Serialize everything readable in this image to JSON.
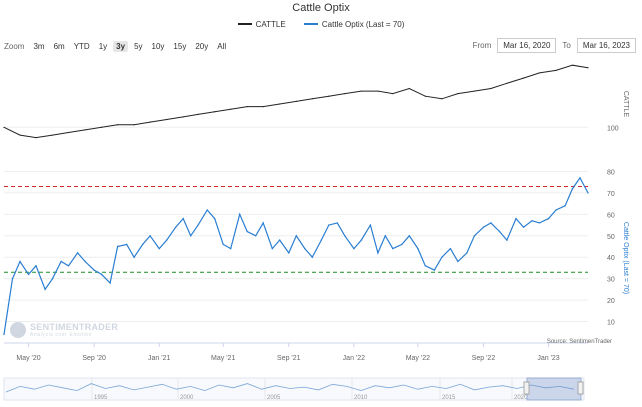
{
  "chart": {
    "title": "Cattle Optix",
    "legend": [
      {
        "label": "CATTLE",
        "color": "#222222"
      },
      {
        "label": "Cattle Optix (Last = 70)",
        "color": "#2a7ed2"
      }
    ],
    "zoom_label": "Zoom",
    "zoom_buttons": [
      "3m",
      "6m",
      "YTD",
      "1y",
      "3y",
      "5y",
      "10y",
      "15y",
      "20y",
      "All"
    ],
    "zoom_active": "3y",
    "from_label": "From",
    "from_date": "Mar 16, 2020",
    "to_label": "To",
    "to_date": "Mar 16, 2023",
    "credit": "Source: SentimenTrader",
    "watermark": "SENTIMENTRADER",
    "watermark_sub": "Analysis over Emotion"
  },
  "chart_data": {
    "type": "line",
    "x_ticks": [
      "May '20",
      "Sep '20",
      "Jan '21",
      "May '21",
      "Sep '21",
      "Jan '22",
      "May '22",
      "Sep '22",
      "Jan '23"
    ],
    "navigator_ticks": [
      "1995",
      "2000",
      "2005",
      "2010",
      "2015",
      "2020"
    ],
    "price_axis": {
      "label": "CATTLE",
      "ticks": [
        100
      ]
    },
    "optix_axis": {
      "label": "Cattle Optix (Last = 70)",
      "ticks": [
        10,
        20,
        30,
        40,
        50,
        60,
        70,
        80
      ],
      "ylim": [
        0,
        90
      ]
    },
    "thresholds": [
      {
        "value": 73,
        "color": "#d62728"
      },
      {
        "value": 33,
        "color": "#1a8f2a"
      }
    ],
    "series": [
      {
        "name": "CATTLE",
        "x": [
          "2020-03-16",
          "2020-04-15",
          "2020-05-15",
          "2020-06-15",
          "2020-07-15",
          "2020-08-15",
          "2020-09-15",
          "2020-10-15",
          "2020-11-15",
          "2020-12-15",
          "2021-01-15",
          "2021-02-15",
          "2021-03-15",
          "2021-04-15",
          "2021-05-15",
          "2021-06-15",
          "2021-07-15",
          "2021-08-15",
          "2021-09-15",
          "2021-10-15",
          "2021-11-15",
          "2021-12-15",
          "2022-01-15",
          "2022-02-15",
          "2022-03-15",
          "2022-04-15",
          "2022-05-15",
          "2022-06-15",
          "2022-07-15",
          "2022-08-15",
          "2022-09-15",
          "2022-10-15",
          "2022-11-15",
          "2022-12-15",
          "2023-01-15",
          "2023-02-15",
          "2023-03-16"
        ],
        "values": [
          100,
          97,
          96,
          97,
          98,
          99,
          100,
          101,
          101,
          102,
          103,
          104,
          105,
          106,
          107,
          108,
          108,
          109,
          110,
          111,
          112,
          113,
          114,
          114,
          113,
          115,
          112,
          111,
          113,
          114,
          115,
          117,
          119,
          121,
          122,
          124,
          123
        ]
      },
      {
        "name": "Cattle Optix (Last = 70)",
        "x": [
          "2020-03-16",
          "2020-04-01",
          "2020-04-15",
          "2020-05-01",
          "2020-05-15",
          "2020-06-01",
          "2020-06-15",
          "2020-07-01",
          "2020-07-15",
          "2020-08-01",
          "2020-08-15",
          "2020-09-01",
          "2020-09-15",
          "2020-10-01",
          "2020-10-15",
          "2020-11-01",
          "2020-11-15",
          "2020-12-01",
          "2020-12-15",
          "2021-01-01",
          "2021-01-15",
          "2021-02-01",
          "2021-02-15",
          "2021-03-01",
          "2021-03-15",
          "2021-04-01",
          "2021-04-15",
          "2021-05-01",
          "2021-05-15",
          "2021-06-01",
          "2021-06-15",
          "2021-07-01",
          "2021-07-15",
          "2021-08-01",
          "2021-08-15",
          "2021-09-01",
          "2021-09-15",
          "2021-10-01",
          "2021-10-15",
          "2021-11-01",
          "2021-11-15",
          "2021-12-01",
          "2021-12-15",
          "2022-01-01",
          "2022-01-15",
          "2022-02-01",
          "2022-02-15",
          "2022-03-01",
          "2022-03-15",
          "2022-04-01",
          "2022-04-15",
          "2022-05-01",
          "2022-05-15",
          "2022-06-01",
          "2022-06-15",
          "2022-07-01",
          "2022-07-15",
          "2022-08-01",
          "2022-08-15",
          "2022-09-01",
          "2022-09-15",
          "2022-10-01",
          "2022-10-15",
          "2022-11-01",
          "2022-11-15",
          "2022-12-01",
          "2022-12-15",
          "2023-01-01",
          "2023-01-15",
          "2023-02-01",
          "2023-02-15",
          "2023-03-01",
          "2023-03-16"
        ],
        "values": [
          4,
          30,
          38,
          32,
          36,
          25,
          30,
          38,
          36,
          42,
          38,
          34,
          32,
          28,
          45,
          46,
          40,
          46,
          50,
          44,
          48,
          54,
          58,
          50,
          55,
          62,
          58,
          46,
          44,
          60,
          52,
          50,
          56,
          44,
          48,
          42,
          50,
          44,
          40,
          48,
          55,
          56,
          50,
          44,
          48,
          55,
          42,
          50,
          44,
          46,
          50,
          44,
          36,
          34,
          40,
          44,
          38,
          42,
          50,
          54,
          56,
          52,
          48,
          58,
          54,
          57,
          56,
          58,
          62,
          64,
          72,
          77,
          70
        ]
      }
    ]
  }
}
